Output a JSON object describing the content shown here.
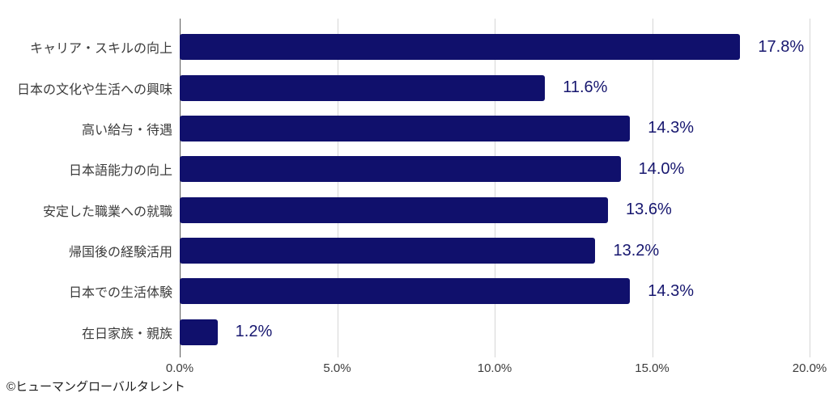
{
  "chart_data": {
    "type": "bar",
    "orientation": "horizontal",
    "title": "",
    "categories": [
      "キャリア・スキルの向上",
      "日本の文化や生活への興味",
      "高い給与・待遇",
      "日本語能力の向上",
      "安定した職業への就職",
      "帰国後の経験活用",
      "日本での生活体験",
      "在日家族・親族"
    ],
    "values": [
      17.8,
      11.6,
      14.3,
      14.0,
      13.6,
      13.2,
      14.3,
      1.2
    ],
    "value_labels": [
      "17.8%",
      "11.6%",
      "14.3%",
      "14.0%",
      "13.6%",
      "13.2%",
      "14.3%",
      "1.2%"
    ],
    "x_ticks": [
      "0.0%",
      "5.0%",
      "10.0%",
      "15.0%",
      "20.0%"
    ],
    "xlim": [
      0,
      20
    ],
    "grid": true,
    "legend": false,
    "colors": {
      "bar": "#10106C",
      "value_label": "#17176F",
      "grid_line": "#d6d6d6",
      "axis_line": "#5c5c5c",
      "text": "#3c3c3c"
    }
  },
  "footer": {
    "credit": "©ヒューマングローバルタレント"
  }
}
